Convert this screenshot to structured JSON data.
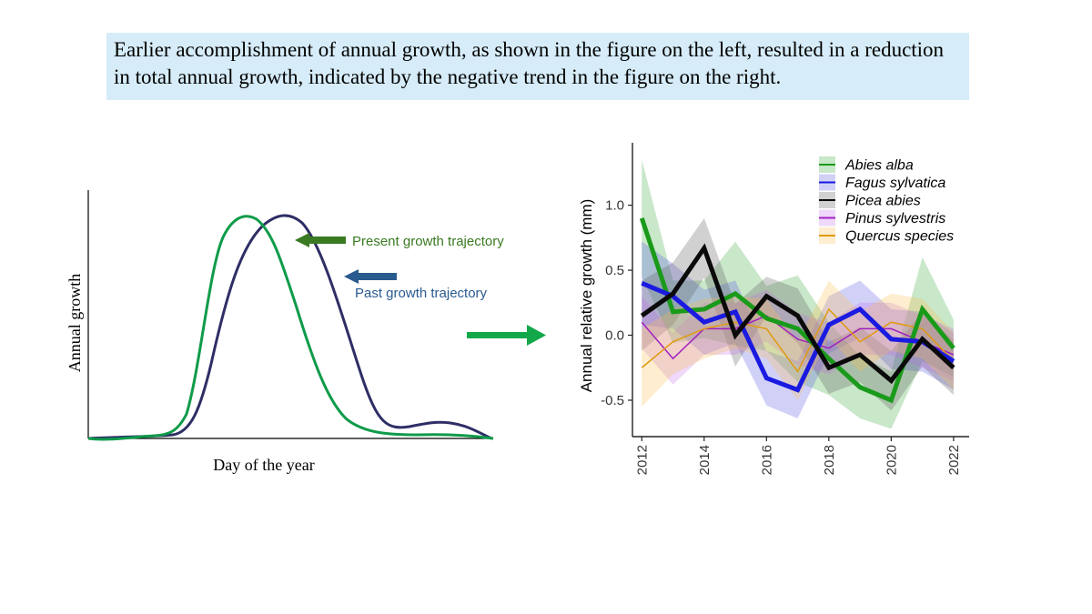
{
  "caption": "Earlier accomplishment of annual growth, as shown in the figure on the left, resulted in a reduction in total annual growth, indicated by the negative trend in the figure on the right.",
  "colors": {
    "caption_bg": "#d6ecf8",
    "present": "#0f9b4a",
    "past": "#2e2e66",
    "present_arrow": "#3a7a22",
    "past_arrow": "#2a5b8e",
    "center_arrow": "#12a84a"
  },
  "left_schematic": {
    "xlabel": "Day of the year",
    "ylabel": "Annual growth",
    "present_label": "Present growth trajectory",
    "past_label": "Past growth trajectory"
  },
  "chart_data": {
    "type": "line",
    "xlabel": "",
    "ylabel": "Annual relative growth (mm)",
    "x": [
      2012,
      2013,
      2014,
      2015,
      2016,
      2017,
      2018,
      2019,
      2020,
      2021,
      2022
    ],
    "xticks": [
      "2012",
      "2014",
      "2016",
      "2018",
      "2020",
      "2022"
    ],
    "yticks": [
      "-0.5",
      "0.0",
      "0.5",
      "1.0"
    ],
    "ylim": [
      -0.78,
      1.48
    ],
    "xlim": [
      2011.7,
      2022.5
    ],
    "legend_position": "top-right",
    "series": [
      {
        "name": "Abies alba",
        "color": "#1a9a1a",
        "fill": "rgba(60,170,60,0.28)",
        "width": 5,
        "values": [
          0.9,
          0.18,
          0.2,
          0.32,
          0.13,
          0.05,
          -0.18,
          -0.4,
          -0.5,
          0.2,
          -0.1
        ],
        "upper": [
          1.35,
          0.42,
          0.42,
          0.72,
          0.38,
          0.46,
          0.1,
          -0.16,
          -0.28,
          0.6,
          0.12
        ],
        "lower": [
          0.45,
          -0.06,
          -0.02,
          -0.08,
          -0.12,
          -0.36,
          -0.46,
          -0.64,
          -0.72,
          -0.2,
          -0.32
        ]
      },
      {
        "name": "Fagus sylvatica",
        "color": "#1a1ae0",
        "fill": "rgba(90,90,230,0.28)",
        "width": 5,
        "values": [
          0.4,
          0.3,
          0.1,
          0.18,
          -0.33,
          -0.42,
          0.08,
          0.2,
          -0.03,
          -0.05,
          -0.2
        ],
        "upper": [
          0.72,
          0.55,
          0.35,
          0.42,
          -0.12,
          -0.2,
          0.3,
          0.42,
          0.2,
          0.18,
          0.02
        ],
        "lower": [
          0.08,
          0.05,
          -0.15,
          -0.06,
          -0.54,
          -0.64,
          -0.14,
          -0.02,
          -0.26,
          -0.28,
          -0.42
        ]
      },
      {
        "name": "Picea abies",
        "color": "#0a0a0a",
        "fill": "rgba(90,90,90,0.28)",
        "width": 5,
        "values": [
          0.15,
          0.32,
          0.67,
          0.0,
          0.3,
          0.15,
          -0.25,
          -0.15,
          -0.35,
          -0.03,
          -0.25
        ],
        "upper": [
          0.42,
          0.56,
          0.9,
          0.24,
          0.45,
          0.36,
          -0.05,
          0.06,
          -0.12,
          0.18,
          -0.04
        ],
        "lower": [
          -0.12,
          0.08,
          0.44,
          -0.24,
          0.15,
          -0.06,
          -0.45,
          -0.36,
          -0.58,
          -0.24,
          -0.46
        ]
      },
      {
        "name": "Pinus sylvestris",
        "color": "#a020c0",
        "fill": "rgba(190,100,230,0.25)",
        "width": 1.5,
        "values": [
          0.1,
          -0.18,
          0.05,
          0.05,
          0.15,
          -0.03,
          -0.1,
          0.05,
          0.05,
          -0.05,
          -0.15
        ],
        "upper": [
          0.3,
          0.02,
          0.25,
          0.25,
          0.35,
          0.17,
          0.1,
          0.25,
          0.25,
          0.15,
          0.05
        ],
        "lower": [
          -0.1,
          -0.38,
          -0.15,
          -0.15,
          -0.05,
          -0.23,
          -0.3,
          -0.15,
          -0.15,
          -0.25,
          -0.35
        ]
      },
      {
        "name": "Quercus species",
        "color": "#e09a10",
        "fill": "rgba(250,190,80,0.28)",
        "width": 1.5,
        "values": [
          -0.25,
          -0.05,
          0.05,
          0.1,
          0.05,
          -0.28,
          0.2,
          -0.05,
          0.1,
          0.05,
          -0.2
        ],
        "upper": [
          0.05,
          0.2,
          0.28,
          0.3,
          0.28,
          -0.05,
          0.42,
          0.18,
          0.32,
          0.28,
          0.02
        ],
        "lower": [
          -0.55,
          -0.3,
          -0.18,
          -0.1,
          -0.18,
          -0.5,
          -0.02,
          -0.28,
          -0.12,
          -0.18,
          -0.42
        ]
      }
    ]
  }
}
